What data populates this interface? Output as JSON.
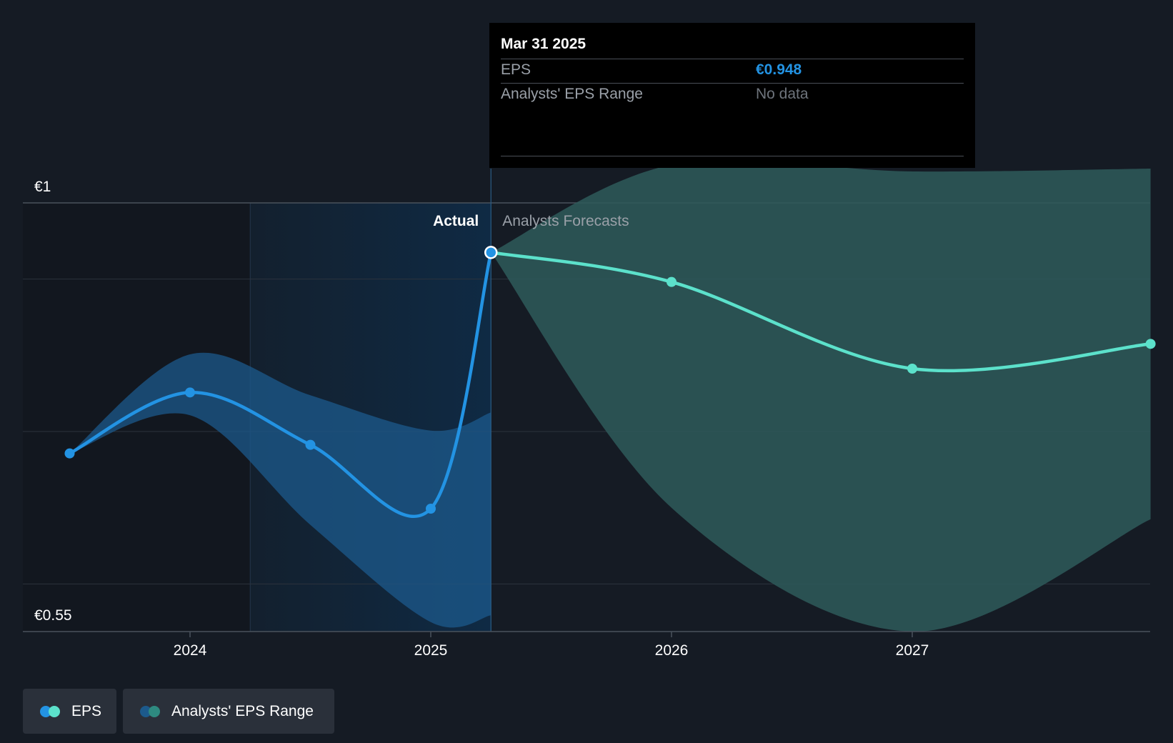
{
  "chart_data": {
    "type": "line",
    "title": "",
    "y_unit": "€",
    "ylim": [
      0.55,
      1.0
    ],
    "y_tick_labels": [
      "€1",
      "€0.55"
    ],
    "y_tick_values": [
      1.0,
      0.55
    ],
    "y_grid_values": [
      1.0,
      0.92,
      0.76,
      0.6,
      0.55
    ],
    "x_domain": [
      2023.3,
      2027.99
    ],
    "x_ticks": [
      2024,
      2025,
      2026,
      2027
    ],
    "x_tick_labels": [
      "2024",
      "2025",
      "2026",
      "2027"
    ],
    "shaded_region_start": 2024.25,
    "divider_x": 2025.25,
    "section_labels": {
      "actual": "Actual",
      "forecast": "Analysts Forecasts"
    },
    "series": [
      {
        "name": "EPS",
        "kind": "actual",
        "color": "#2393e3",
        "points": [
          {
            "x": 2023.5,
            "y": 0.737
          },
          {
            "x": 2024.0,
            "y": 0.801
          },
          {
            "x": 2024.5,
            "y": 0.746
          },
          {
            "x": 2025.0,
            "y": 0.679
          },
          {
            "x": 2025.25,
            "y": 0.948
          }
        ]
      },
      {
        "name": "EPS",
        "kind": "forecast",
        "color": "#5ce1cb",
        "points": [
          {
            "x": 2025.25,
            "y": 0.948
          },
          {
            "x": 2026.0,
            "y": 0.917
          },
          {
            "x": 2027.0,
            "y": 0.826
          },
          {
            "x": 2027.99,
            "y": 0.852
          }
        ]
      }
    ],
    "ranges": [
      {
        "name": "Analysts' EPS Range",
        "kind": "actual",
        "color": "#1c5a8c",
        "x": [
          2023.5,
          2024.0,
          2024.5,
          2025.0,
          2025.25
        ],
        "upper": [
          0.737,
          0.841,
          0.798,
          0.761,
          0.78
        ],
        "lower": [
          0.737,
          0.777,
          0.662,
          0.56,
          0.567
        ]
      },
      {
        "name": "Analysts' EPS Range",
        "kind": "forecast",
        "color": "#2e5a5b",
        "x": [
          2025.25,
          2026.0,
          2027.0,
          2027.99
        ],
        "upper": [
          0.948,
          1.04,
          1.033,
          1.036
        ],
        "lower": [
          0.948,
          0.68,
          0.55,
          0.668
        ]
      }
    ],
    "highlight": {
      "x": 2025.25,
      "y": 0.948
    },
    "tooltip": {
      "date": "Mar 31 2025",
      "eps_label": "EPS",
      "eps_value": "€0.948",
      "range_label": "Analysts' EPS Range",
      "range_value": "No data"
    },
    "legend": [
      {
        "label": "EPS",
        "colors": [
          "#2393e3",
          "#5ce1cb"
        ]
      },
      {
        "label": "Analysts' EPS Range",
        "colors": [
          "#1c5a8c",
          "#2e8a80"
        ]
      }
    ]
  }
}
